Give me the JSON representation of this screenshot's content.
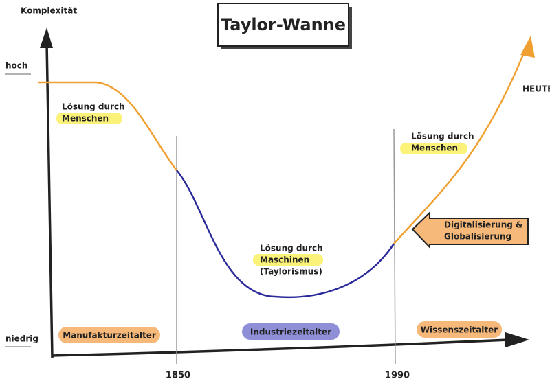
{
  "title": "Taylor-Wanne",
  "y_axis": {
    "label": "Komplexität",
    "high": "hoch",
    "low": "niedrig"
  },
  "x_axis": {
    "markers": [
      "1850",
      "1990"
    ],
    "end": "HEUTE"
  },
  "annotations": [
    {
      "lines": [
        "Lösung durch",
        "Menschen"
      ]
    },
    {
      "lines": [
        "Lösung durch",
        "Maschinen",
        "(Taylorismus)"
      ]
    },
    {
      "lines": [
        "Lösung durch",
        "Menschen"
      ]
    }
  ],
  "callout": {
    "lines": [
      "Digitalisierung &",
      "Globalisierung"
    ]
  },
  "eras": [
    "Manufakturzeitalter",
    "Industriezeitalter",
    "Wissenszeitalter"
  ]
}
